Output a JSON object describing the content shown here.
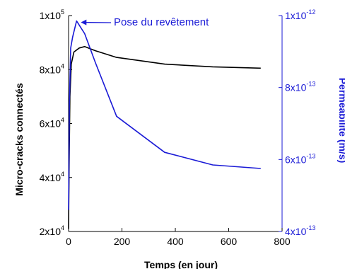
{
  "chart_data": {
    "type": "line",
    "title": "",
    "xlabel": "Temps (en jour)",
    "ylabel_left": "Micro-cracks connectés",
    "ylabel_right": "Perméabilité (m/s)",
    "xlim": [
      0,
      800
    ],
    "ylim_left": [
      20000,
      100000
    ],
    "ylim_right": [
      4e-13,
      1e-12
    ],
    "x_ticks": [
      "0",
      "200",
      "400",
      "600",
      "800"
    ],
    "y_left_ticks": [
      {
        "base": "2x10",
        "exp": "4",
        "value": 20000
      },
      {
        "base": "4x10",
        "exp": "4",
        "value": 40000
      },
      {
        "base": "6x10",
        "exp": "4",
        "value": 60000
      },
      {
        "base": "8x10",
        "exp": "4",
        "value": 80000
      },
      {
        "base": "1x10",
        "exp": "5",
        "value": 100000
      }
    ],
    "y_right_ticks": [
      {
        "base": "4x10",
        "exp": "-13",
        "value": 4e-13
      },
      {
        "base": "6x10",
        "exp": "-13",
        "value": 6e-13
      },
      {
        "base": "8x10",
        "exp": "-13",
        "value": 8e-13
      },
      {
        "base": "1x10",
        "exp": "-12",
        "value": 1e-12
      }
    ],
    "series": [
      {
        "axis": "left",
        "color": "#000000",
        "x": [
          0,
          2,
          5,
          10,
          20,
          40,
          60,
          100,
          180,
          360,
          540,
          720
        ],
        "y": [
          21000,
          45000,
          70000,
          82000,
          86500,
          88000,
          88500,
          87000,
          84500,
          82000,
          81000,
          80500
        ]
      },
      {
        "axis": "right",
        "color": "#1a1ad6",
        "x": [
          0,
          1,
          3,
          8,
          15,
          30,
          60,
          100,
          180,
          360,
          540,
          720
        ],
        "y": [
          4.6e-13,
          5.5e-13,
          7.5e-13,
          9.1e-13,
          9.4e-13,
          9.85e-13,
          9.5e-13,
          8.7e-13,
          7.2e-13,
          6.2e-13,
          5.85e-13,
          5.75e-13
        ]
      }
    ],
    "annotation": {
      "text": "Pose du revêtement",
      "x": 30,
      "y_axis": "right",
      "y": 9.85e-13
    }
  }
}
